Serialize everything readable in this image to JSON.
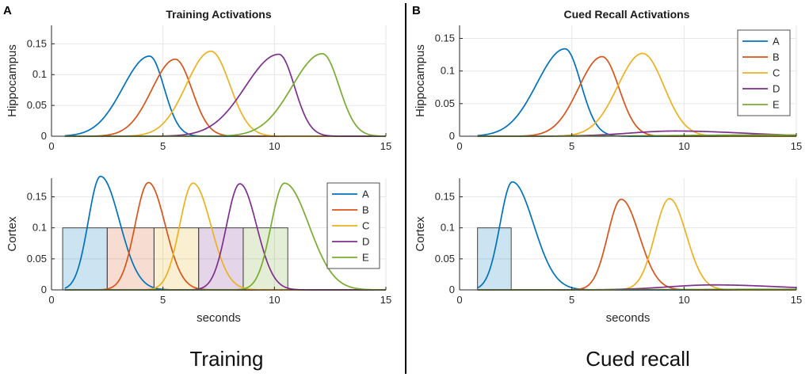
{
  "panels": [
    {
      "letter": "A",
      "title": "Training Activations",
      "caption": "Training"
    },
    {
      "letter": "B",
      "title": "Cued Recall Activations",
      "caption": "Cued recall"
    }
  ],
  "colors": {
    "A": "#0072BD",
    "B": "#D95319",
    "C": "#EDB120",
    "D": "#7E2F8E",
    "E": "#77AC30"
  },
  "chart_data": [
    {
      "id": "A-top",
      "type": "line",
      "title": "Training Activations",
      "xlabel": "",
      "ylabel": "Hippocampus",
      "xlim": [
        0,
        15
      ],
      "ylim": [
        0,
        0.18
      ],
      "xticks": [
        0,
        5,
        10,
        15
      ],
      "yticks": [
        0,
        0.05,
        0.1,
        0.15
      ],
      "ytick_labels": [
        "0",
        "0.05",
        "0.1",
        "0.15"
      ],
      "grid": true,
      "legend": null,
      "series": [
        {
          "name": "A",
          "x_start": 0.6,
          "x_end": 15,
          "peak_x": 4.4,
          "peak_y": 0.13,
          "width_left": 1.2,
          "width_right": 0.65
        },
        {
          "name": "B",
          "x_start": 0.6,
          "x_end": 15,
          "peak_x": 5.55,
          "peak_y": 0.125,
          "width_left": 1.05,
          "width_right": 0.75
        },
        {
          "name": "C",
          "x_start": 0.6,
          "x_end": 15,
          "peak_x": 7.15,
          "peak_y": 0.138,
          "width_left": 1.1,
          "width_right": 0.85
        },
        {
          "name": "D",
          "x_start": 0.6,
          "x_end": 15,
          "peak_x": 10.2,
          "peak_y": 0.133,
          "width_left": 1.5,
          "width_right": 0.7
        },
        {
          "name": "E",
          "x_start": 0.6,
          "x_end": 15,
          "peak_x": 12.15,
          "peak_y": 0.134,
          "width_left": 1.35,
          "width_right": 0.75
        }
      ]
    },
    {
      "id": "A-bottom",
      "type": "line",
      "title": "",
      "xlabel": "seconds",
      "ylabel": "Cortex",
      "xlim": [
        0,
        15
      ],
      "ylim": [
        0,
        0.18
      ],
      "xticks": [
        0,
        5,
        10,
        15
      ],
      "yticks": [
        0,
        0.05,
        0.1,
        0.15
      ],
      "ytick_labels": [
        "0",
        "0.05",
        "0.1",
        "0.15"
      ],
      "grid": true,
      "legend": "top-right",
      "cue_boxes": [
        {
          "series": "A",
          "x0": 0.5,
          "x1": 2.5,
          "y": 0.1
        },
        {
          "series": "B",
          "x0": 2.5,
          "x1": 4.6,
          "y": 0.1
        },
        {
          "series": "C",
          "x0": 4.6,
          "x1": 6.6,
          "y": 0.1
        },
        {
          "series": "D",
          "x0": 6.6,
          "x1": 8.6,
          "y": 0.1
        },
        {
          "series": "E",
          "x0": 8.6,
          "x1": 10.6,
          "y": 0.1
        }
      ],
      "series": [
        {
          "name": "A",
          "x_start": 0.6,
          "x_end": 15,
          "peak_x": 2.2,
          "peak_y": 0.183,
          "width_left": 0.55,
          "width_right": 0.85
        },
        {
          "name": "B",
          "x_start": 0.6,
          "x_end": 15,
          "peak_x": 4.35,
          "peak_y": 0.173,
          "width_left": 0.6,
          "width_right": 0.75
        },
        {
          "name": "C",
          "x_start": 0.6,
          "x_end": 15,
          "peak_x": 6.35,
          "peak_y": 0.172,
          "width_left": 0.6,
          "width_right": 0.8
        },
        {
          "name": "D",
          "x_start": 0.6,
          "x_end": 15,
          "peak_x": 8.45,
          "peak_y": 0.171,
          "width_left": 0.6,
          "width_right": 0.75
        },
        {
          "name": "E",
          "x_start": 0.6,
          "x_end": 15,
          "peak_x": 10.45,
          "peak_y": 0.172,
          "width_left": 0.6,
          "width_right": 1.1
        }
      ]
    },
    {
      "id": "B-top",
      "type": "line",
      "title": "Cued Recall Activations",
      "xlabel": "",
      "ylabel": "Hippocampus",
      "xlim": [
        0,
        15
      ],
      "ylim": [
        0,
        0.17
      ],
      "xticks": [
        0,
        5,
        10,
        15
      ],
      "yticks": [
        0,
        0.05,
        0.1,
        0.15
      ],
      "ytick_labels": [
        "0",
        "0.05",
        "0.1",
        "0.15"
      ],
      "grid": true,
      "legend": "top-right",
      "series": [
        {
          "name": "A",
          "x_start": 0.8,
          "x_end": 15,
          "peak_x": 4.7,
          "peak_y": 0.134,
          "width_left": 1.25,
          "width_right": 0.7
        },
        {
          "name": "B",
          "x_start": 0.8,
          "x_end": 15,
          "peak_x": 6.35,
          "peak_y": 0.122,
          "width_left": 1.05,
          "width_right": 0.75
        },
        {
          "name": "C",
          "x_start": 0.8,
          "x_end": 15,
          "peak_x": 8.15,
          "peak_y": 0.127,
          "width_left": 1.1,
          "width_right": 0.95
        },
        {
          "name": "D",
          "x_start": 0.8,
          "x_end": 15,
          "peak_x": 9.6,
          "peak_y": 0.008,
          "width_left": 2.0,
          "width_right": 3.0
        },
        {
          "name": "E",
          "x_start": 0.8,
          "x_end": 15,
          "peak_x": 14.0,
          "peak_y": 0.002,
          "width_left": 4.0,
          "width_right": 3.0
        }
      ]
    },
    {
      "id": "B-bottom",
      "type": "line",
      "title": "",
      "xlabel": "seconds",
      "ylabel": "Cortex",
      "xlim": [
        0,
        15
      ],
      "ylim": [
        0,
        0.18
      ],
      "xticks": [
        0,
        5,
        10,
        15
      ],
      "yticks": [
        0,
        0.05,
        0.1,
        0.15
      ],
      "ytick_labels": [
        "0",
        "0.05",
        "0.1",
        "0.15"
      ],
      "grid": true,
      "legend": null,
      "cue_boxes": [
        {
          "series": "A",
          "x0": 0.8,
          "x1": 2.3,
          "y": 0.1
        }
      ],
      "series": [
        {
          "name": "A",
          "x_start": 0.8,
          "x_end": 15,
          "peak_x": 2.35,
          "peak_y": 0.174,
          "width_left": 0.55,
          "width_right": 0.95
        },
        {
          "name": "B",
          "x_start": 0.8,
          "x_end": 15,
          "peak_x": 7.2,
          "peak_y": 0.146,
          "width_left": 0.6,
          "width_right": 0.8
        },
        {
          "name": "C",
          "x_start": 0.8,
          "x_end": 15,
          "peak_x": 9.35,
          "peak_y": 0.147,
          "width_left": 0.65,
          "width_right": 0.75
        },
        {
          "name": "D",
          "x_start": 0.8,
          "x_end": 15,
          "peak_x": 11.3,
          "peak_y": 0.008,
          "width_left": 2.0,
          "width_right": 3.0
        },
        {
          "name": "E",
          "x_start": 0.8,
          "x_end": 15,
          "peak_x": 14.0,
          "peak_y": 0.001,
          "width_left": 4.0,
          "width_right": 3.0
        }
      ]
    }
  ]
}
